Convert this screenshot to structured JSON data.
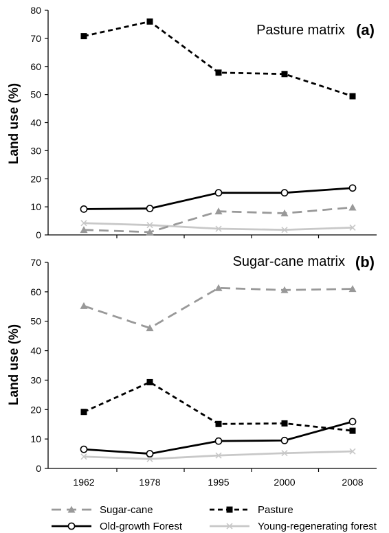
{
  "chart_data": [
    {
      "type": "line",
      "title": "Pasture matrix",
      "panel_label": "(a)",
      "ylabel": "Land use (%)",
      "ylim": [
        0,
        80
      ],
      "yticks": [
        0,
        10,
        20,
        30,
        40,
        50,
        60,
        70,
        80
      ],
      "categories": [
        "1962",
        "1978",
        "1995",
        "2000",
        "2008"
      ],
      "series": [
        {
          "name": "Pasture",
          "values": [
            70.8,
            76.0,
            57.8,
            57.3,
            49.4
          ]
        },
        {
          "name": "Old-growth Forest",
          "values": [
            9.2,
            9.4,
            15.0,
            15.0,
            16.7
          ]
        },
        {
          "name": "Sugar-cane",
          "values": [
            1.8,
            1.0,
            8.4,
            7.7,
            9.8
          ]
        },
        {
          "name": "Young-regenerating forest",
          "values": [
            4.2,
            3.5,
            2.2,
            1.8,
            2.6
          ]
        }
      ]
    },
    {
      "type": "line",
      "title": "Sugar-cane matrix",
      "panel_label": "(b)",
      "ylabel": "Land use (%)",
      "ylim": [
        0,
        70
      ],
      "yticks": [
        0,
        10,
        20,
        30,
        40,
        50,
        60,
        70
      ],
      "categories": [
        "1962",
        "1978",
        "1995",
        "2000",
        "2008"
      ],
      "series": [
        {
          "name": "Sugar-cane",
          "values": [
            55.2,
            47.7,
            61.3,
            60.6,
            61.0
          ]
        },
        {
          "name": "Pasture",
          "values": [
            19.2,
            29.3,
            15.1,
            15.3,
            12.8
          ]
        },
        {
          "name": "Old-growth Forest",
          "values": [
            6.5,
            5.0,
            9.3,
            9.5,
            15.9
          ]
        },
        {
          "name": "Young-regenerating forest",
          "values": [
            4.0,
            3.2,
            4.4,
            5.2,
            5.8
          ]
        }
      ]
    }
  ],
  "legend": [
    {
      "name": "Sugar-cane",
      "color": "#999999",
      "dash": "dashed",
      "marker": "triangle"
    },
    {
      "name": "Pasture",
      "color": "#000000",
      "dash": "dotted",
      "marker": "square"
    },
    {
      "name": "Old-growth Forest",
      "color": "#000000",
      "dash": "solid",
      "marker": "circle"
    },
    {
      "name": "Young-regenerating forest",
      "color": "#c8c8c8",
      "dash": "solid",
      "marker": "cross"
    }
  ]
}
